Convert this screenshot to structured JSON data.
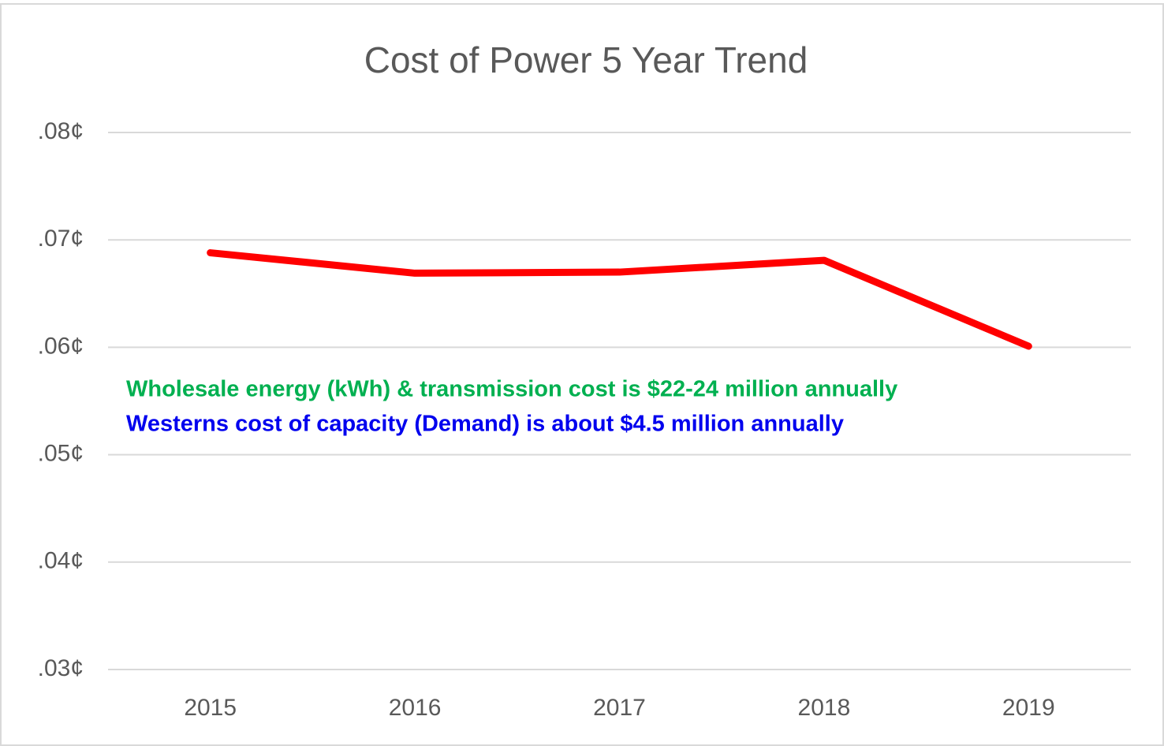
{
  "chart_data": {
    "type": "line",
    "title": "Cost of Power 5 Year Trend",
    "categories": [
      "2015",
      "2016",
      "2017",
      "2018",
      "2019"
    ],
    "series": [
      {
        "name": "Cost of Power",
        "color": "#ff0000",
        "values": [
          0.0688,
          0.0669,
          0.067,
          0.0681,
          0.0601
        ]
      }
    ],
    "ylim": [
      0.03,
      0.08
    ],
    "yticks": [
      {
        "value": 0.03,
        "label": ".03¢"
      },
      {
        "value": 0.04,
        "label": ".04¢"
      },
      {
        "value": 0.05,
        "label": ".05¢"
      },
      {
        "value": 0.06,
        "label": ".06¢"
      },
      {
        "value": 0.07,
        "label": ".07¢"
      },
      {
        "value": 0.08,
        "label": ".08¢"
      }
    ],
    "grid": true,
    "annotations": [
      {
        "text": "Wholesale energy (kWh) & transmission cost is $22-24 million annually",
        "color": "#00b050"
      },
      {
        "text": "Westerns cost of capacity (Demand) is about $4.5 million annually",
        "color": "#0000ee"
      }
    ]
  }
}
